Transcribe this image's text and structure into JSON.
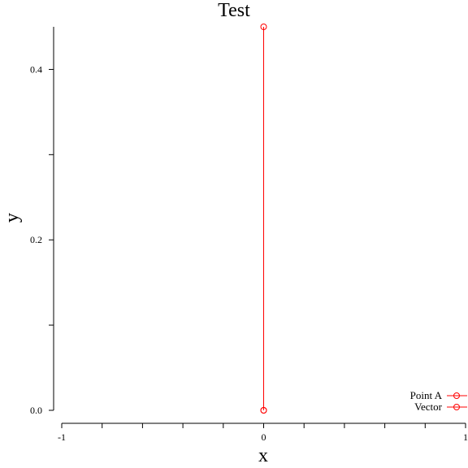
{
  "chart_data": {
    "type": "line",
    "title": "Test",
    "xlabel": "x",
    "ylabel": "y",
    "xlim": [
      -1,
      1
    ],
    "ylim": [
      0,
      0.45
    ],
    "x_ticks": [
      -1,
      -0.8,
      -0.6,
      -0.4,
      -0.2,
      0,
      0.2,
      0.4,
      0.6,
      0.8,
      1
    ],
    "x_tick_labels": [
      {
        "value": -1,
        "label": "-1"
      },
      {
        "value": 0,
        "label": "0"
      },
      {
        "value": 1,
        "label": "1"
      }
    ],
    "y_ticks": [
      0,
      0.1,
      0.2,
      0.3,
      0.4
    ],
    "y_tick_labels": [
      {
        "value": 0,
        "label": "0.0"
      },
      {
        "value": 0.2,
        "label": "0.2"
      },
      {
        "value": 0.4,
        "label": "0.4"
      }
    ],
    "grid": false,
    "legend_position": "bottom-right",
    "series": [
      {
        "name": "Point A",
        "color": "#ff0000",
        "marker": "circle",
        "points": [
          {
            "x": 0,
            "y": 0
          }
        ]
      },
      {
        "name": "Vector",
        "color": "#ff0000",
        "marker": "circle",
        "points": [
          {
            "x": 0,
            "y": 0
          },
          {
            "x": 0,
            "y": 0.45
          }
        ]
      }
    ]
  }
}
